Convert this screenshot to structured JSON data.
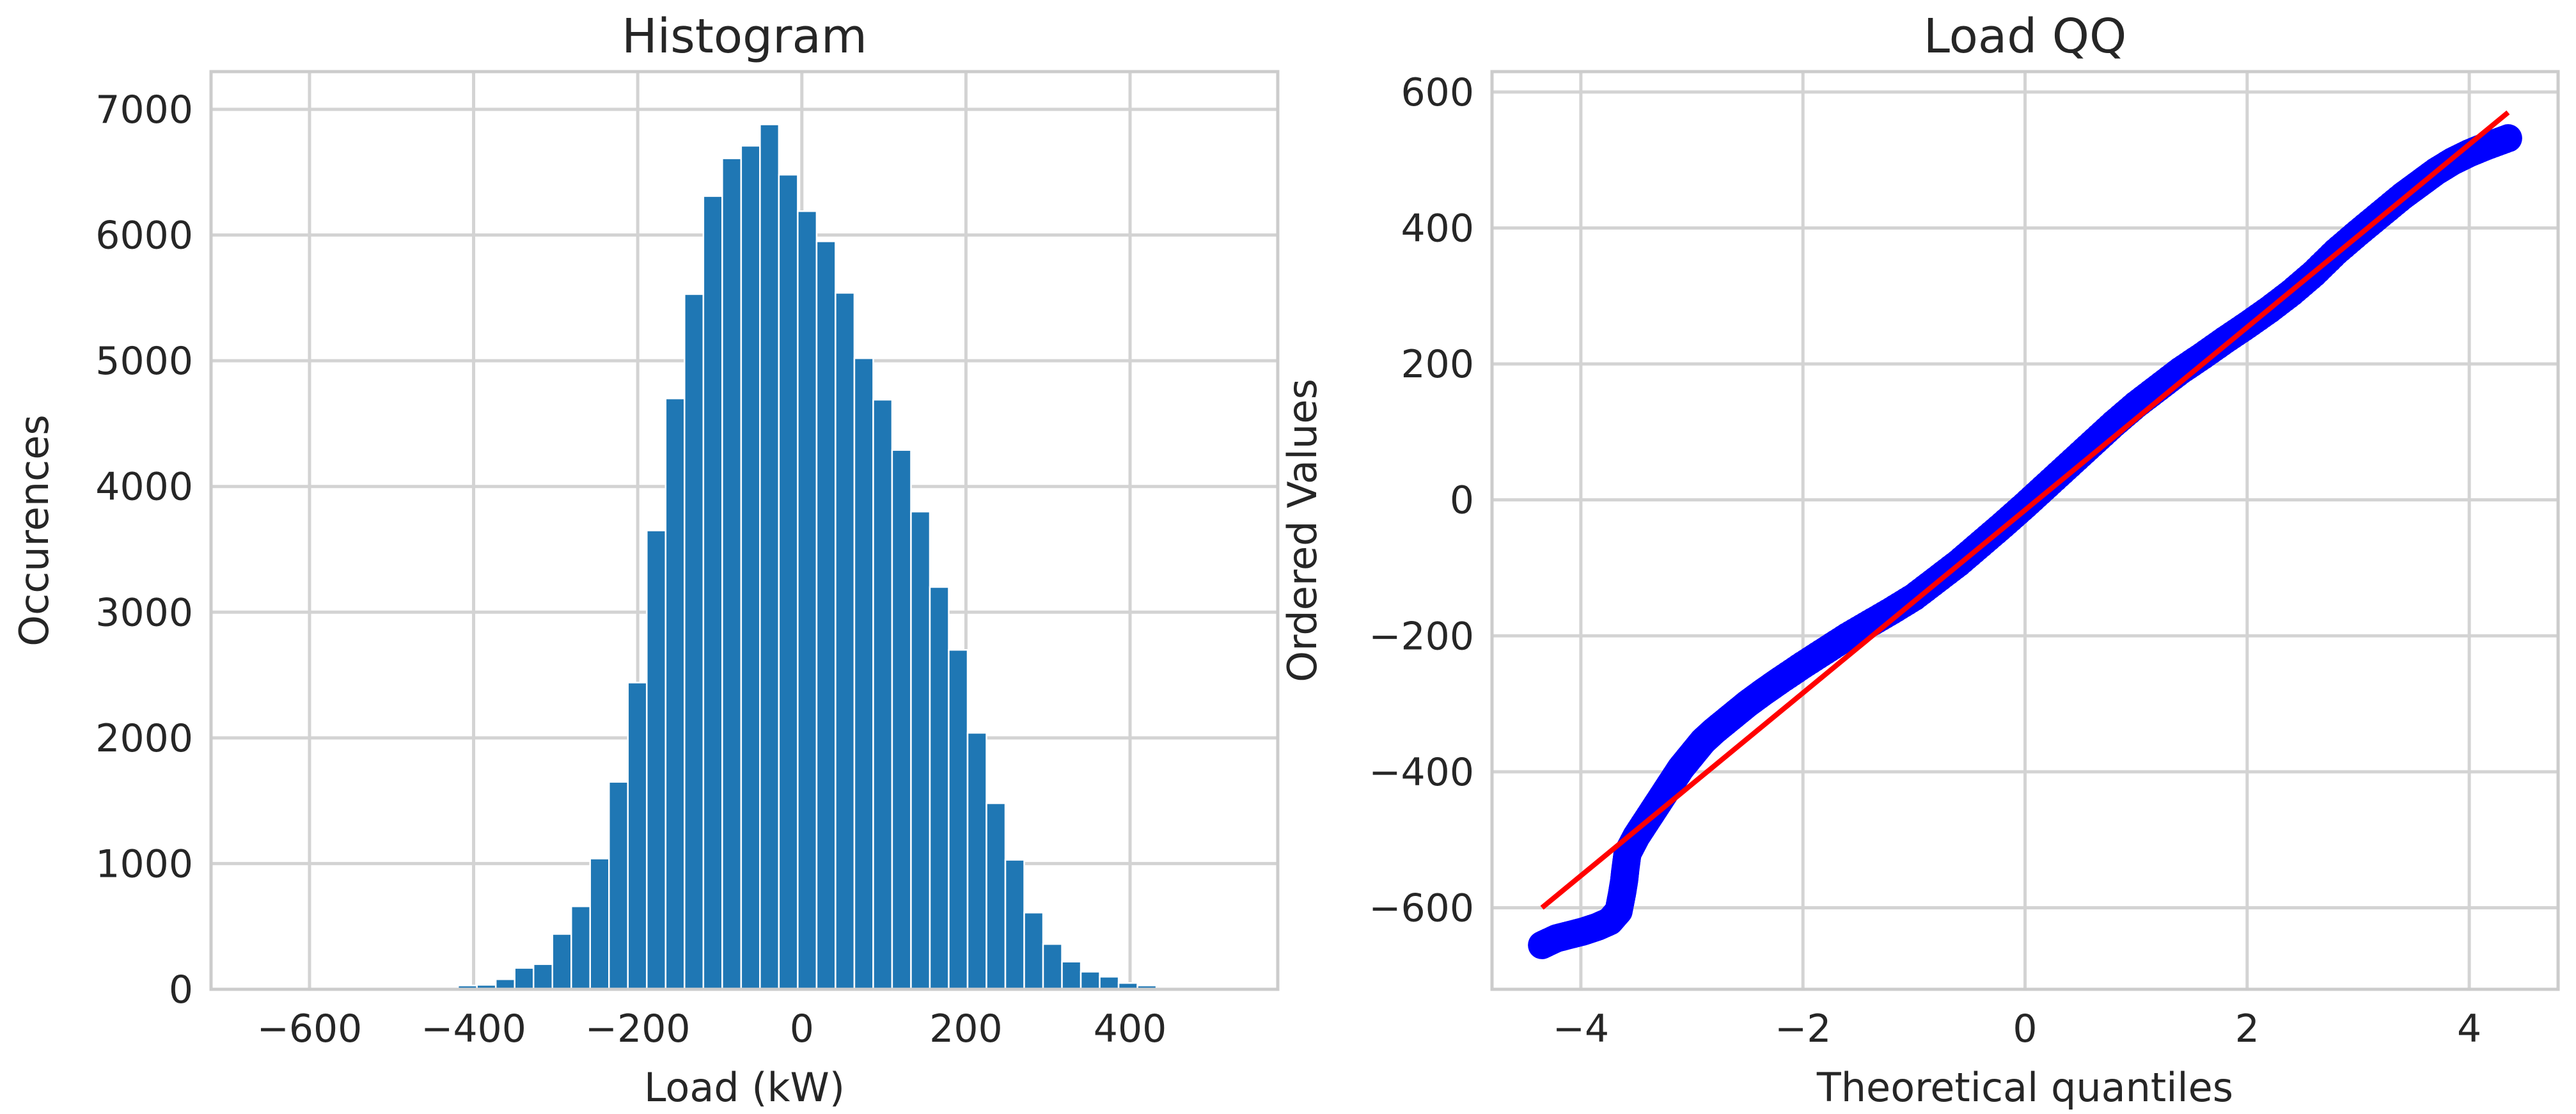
{
  "chart_data": [
    {
      "type": "bar",
      "subtype": "histogram",
      "title": "Histogram",
      "xlabel": "Load (kW)",
      "ylabel": "Occurences",
      "xlim": [
        -720,
        580
      ],
      "ylim": [
        0,
        7300
      ],
      "xticks": [
        -600,
        -400,
        -200,
        0,
        200,
        400
      ],
      "yticks": [
        0,
        1000,
        2000,
        3000,
        4000,
        5000,
        6000,
        7000
      ],
      "xtick_labels": [
        "−600",
        "−400",
        "−200",
        "0",
        "200",
        "400"
      ],
      "ytick_labels": [
        "0",
        "1000",
        "2000",
        "3000",
        "4000",
        "5000",
        "6000",
        "7000"
      ],
      "grid": true,
      "color": "#1f77b4",
      "bins": [
        {
          "x0": -465,
          "x1": -442,
          "count": 10
        },
        {
          "x0": -442,
          "x1": -419,
          "count": 15
        },
        {
          "x0": -419,
          "x1": -396,
          "count": 30
        },
        {
          "x0": -396,
          "x1": -373,
          "count": 35
        },
        {
          "x0": -373,
          "x1": -350,
          "count": 80
        },
        {
          "x0": -350,
          "x1": -327,
          "count": 170
        },
        {
          "x0": -327,
          "x1": -304,
          "count": 200
        },
        {
          "x0": -304,
          "x1": -281,
          "count": 440
        },
        {
          "x0": -281,
          "x1": -258,
          "count": 660
        },
        {
          "x0": -258,
          "x1": -235,
          "count": 1040
        },
        {
          "x0": -235,
          "x1": -212,
          "count": 1650
        },
        {
          "x0": -212,
          "x1": -189,
          "count": 2440
        },
        {
          "x0": -189,
          "x1": -166,
          "count": 3650
        },
        {
          "x0": -166,
          "x1": -143,
          "count": 4700
        },
        {
          "x0": -143,
          "x1": -120,
          "count": 5530
        },
        {
          "x0": -120,
          "x1": -97,
          "count": 6310
        },
        {
          "x0": -97,
          "x1": -74,
          "count": 6610
        },
        {
          "x0": -74,
          "x1": -51,
          "count": 6710
        },
        {
          "x0": -51,
          "x1": -28,
          "count": 6880
        },
        {
          "x0": -28,
          "x1": -5,
          "count": 6480
        },
        {
          "x0": -5,
          "x1": 18,
          "count": 6190
        },
        {
          "x0": 18,
          "x1": 41,
          "count": 5950
        },
        {
          "x0": 41,
          "x1": 64,
          "count": 5540
        },
        {
          "x0": 64,
          "x1": 87,
          "count": 5020
        },
        {
          "x0": 87,
          "x1": 110,
          "count": 4690
        },
        {
          "x0": 110,
          "x1": 133,
          "count": 4290
        },
        {
          "x0": 133,
          "x1": 156,
          "count": 3800
        },
        {
          "x0": 156,
          "x1": 179,
          "count": 3200
        },
        {
          "x0": 179,
          "x1": 202,
          "count": 2700
        },
        {
          "x0": 202,
          "x1": 225,
          "count": 2040
        },
        {
          "x0": 225,
          "x1": 248,
          "count": 1480
        },
        {
          "x0": 248,
          "x1": 271,
          "count": 1030
        },
        {
          "x0": 271,
          "x1": 294,
          "count": 610
        },
        {
          "x0": 294,
          "x1": 317,
          "count": 360
        },
        {
          "x0": 317,
          "x1": 340,
          "count": 220
        },
        {
          "x0": 340,
          "x1": 363,
          "count": 140
        },
        {
          "x0": 363,
          "x1": 386,
          "count": 100
        },
        {
          "x0": 386,
          "x1": 409,
          "count": 50
        },
        {
          "x0": 409,
          "x1": 432,
          "count": 30
        },
        {
          "x0": 432,
          "x1": 455,
          "count": 10
        }
      ]
    },
    {
      "type": "scatter",
      "subtype": "qq-plot",
      "title": "Load QQ",
      "xlabel": "Theoretical quantiles",
      "ylabel": "Ordered Values",
      "xlim": [
        -4.8,
        4.8
      ],
      "ylim": [
        -720,
        630
      ],
      "xticks": [
        -4,
        -2,
        0,
        2,
        4
      ],
      "yticks": [
        -600,
        -400,
        -200,
        0,
        200,
        400,
        600
      ],
      "xtick_labels": [
        "−4",
        "−2",
        "0",
        "2",
        "4"
      ],
      "ytick_labels": [
        "−600",
        "−400",
        "−200",
        "0",
        "200",
        "400",
        "600"
      ],
      "grid": true,
      "point_color": "#0000ff",
      "line_color": "#ff0000",
      "fit_line": {
        "x": [
          -4.35,
          4.35
        ],
        "y": [
          -600,
          570
        ]
      },
      "points": {
        "x": [
          -4.35,
          -4.22,
          -4.1,
          -3.98,
          -3.85,
          -3.74,
          -3.66,
          -3.63,
          -3.61,
          -3.6,
          -3.58,
          -3.5,
          -3.4,
          -3.3,
          -3.2,
          -3.1,
          -3.0,
          -2.9,
          -2.8,
          -2.65,
          -2.5,
          -2.35,
          -2.2,
          -2.0,
          -1.8,
          -1.6,
          -1.4,
          -1.2,
          -1.0,
          -0.8,
          -0.6,
          -0.4,
          -0.2,
          0.0,
          0.2,
          0.4,
          0.6,
          0.8,
          1.0,
          1.2,
          1.4,
          1.6,
          1.8,
          2.0,
          2.2,
          2.4,
          2.6,
          2.8,
          3.0,
          3.2,
          3.4,
          3.55,
          3.7,
          3.85,
          4.0,
          4.15,
          4.35
        ],
        "y": [
          -655,
          -645,
          -640,
          -635,
          -628,
          -620,
          -605,
          -580,
          -560,
          -545,
          -520,
          -495,
          -470,
          -445,
          -420,
          -395,
          -375,
          -355,
          -340,
          -320,
          -300,
          -282,
          -265,
          -243,
          -222,
          -201,
          -182,
          -163,
          -143,
          -118,
          -93,
          -65,
          -37,
          -8,
          22,
          52,
          82,
          112,
          140,
          165,
          190,
          212,
          235,
          257,
          280,
          305,
          333,
          365,
          393,
          420,
          447,
          465,
          483,
          498,
          510,
          520,
          532
        ]
      }
    }
  ]
}
